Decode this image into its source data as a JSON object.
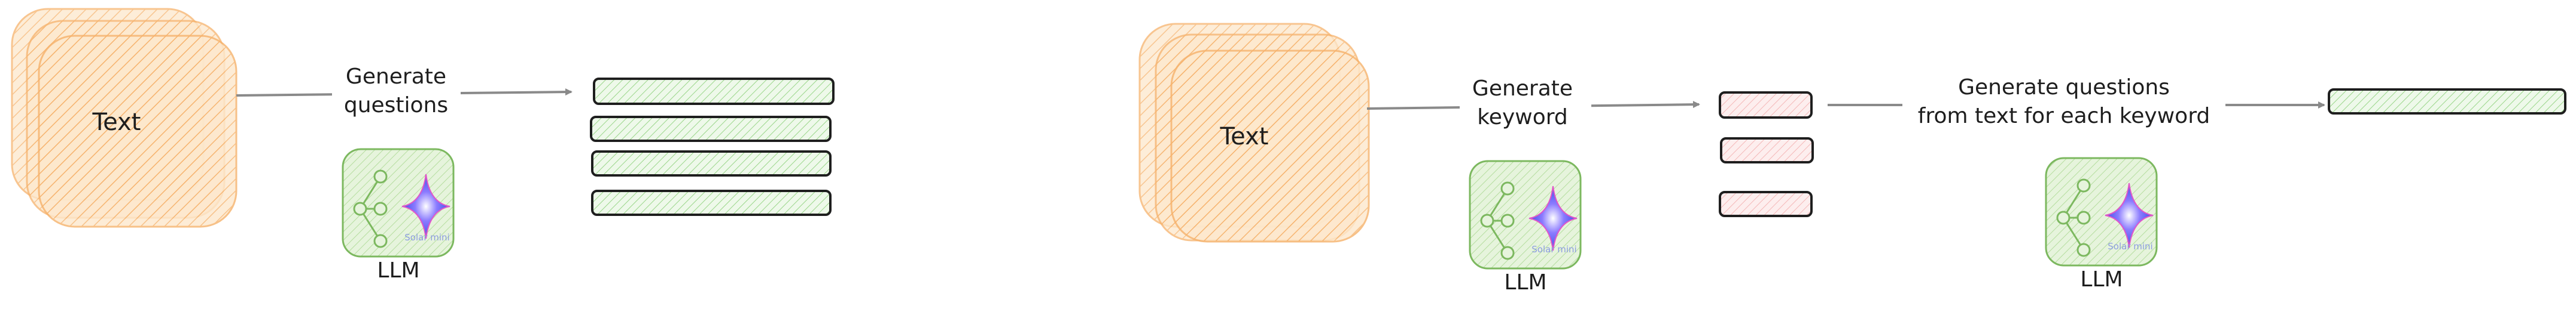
{
  "left_flow": {
    "source_label": "Text",
    "step_label_line1": "Generate",
    "step_label_line2": "questions",
    "model_label": "LLM",
    "model_logo_text": "Solar mini",
    "output_count": 4
  },
  "right_flow": {
    "source_label": "Text",
    "step1_label_line1": "Generate",
    "step1_label_line2": "keyword",
    "step1_model_label": "LLM",
    "step1_model_logo_text": "Solar mini",
    "keyword_count": 3,
    "step2_label_line1": "Generate questions",
    "step2_label_line2": "from text for each keyword",
    "step2_model_label": "LLM",
    "step2_model_logo_text": "Solar mini",
    "output_count": 1
  },
  "colors": {
    "text_box": "#f6b26b",
    "text_box_fill": "#fde8cc",
    "output_fill": "#b7e4b0",
    "keyword_fill": "#f4b7b7",
    "llm_box": "#c9e8b5",
    "llm_border": "#7cb85f",
    "arrow": "#8a8a8a",
    "stroke": "#1e1e1e"
  }
}
